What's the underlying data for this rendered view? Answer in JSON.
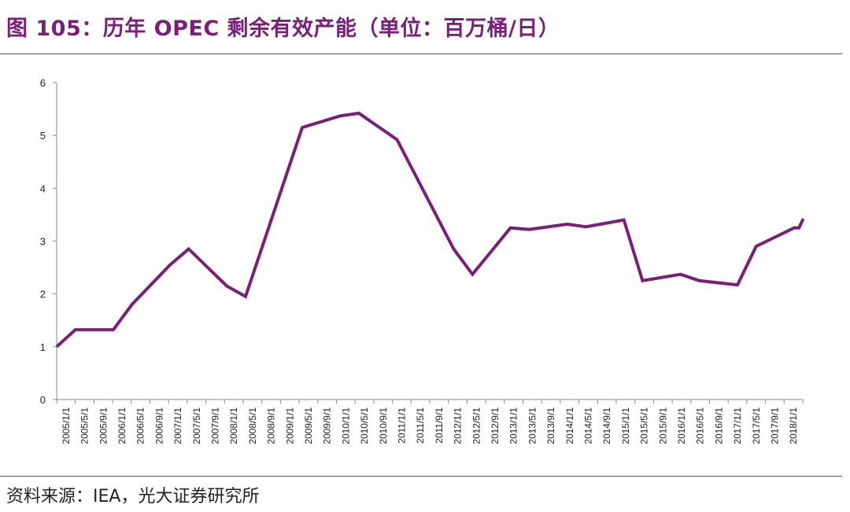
{
  "figure": {
    "title": "图 105：历年 OPEC 剩余有效产能（单位：百万桶/日）",
    "source": "资料来源：IEA，光大证券研究所"
  },
  "chart_data": {
    "type": "line",
    "title": "",
    "xlabel": "",
    "ylabel": "",
    "ylim": [
      0,
      6
    ],
    "yticks": [
      0,
      1,
      2,
      3,
      4,
      5,
      6
    ],
    "grid": false,
    "legend": "none",
    "colors": {
      "line": "#7b1e7a"
    },
    "categories": [
      "2005/1/1",
      "2005/5/1",
      "2005/9/1",
      "2006/1/1",
      "2006/5/1",
      "2006/9/1",
      "2007/1/1",
      "2007/5/1",
      "2007/9/1",
      "2008/1/1",
      "2008/5/1",
      "2008/9/1",
      "2009/1/1",
      "2009/5/1",
      "2009/9/1",
      "2010/1/1",
      "2010/5/1",
      "2010/9/1",
      "2011/1/1",
      "2011/5/1",
      "2011/9/1",
      "2012/1/1",
      "2012/5/1",
      "2012/9/1",
      "2013/1/1",
      "2013/5/1",
      "2013/9/1",
      "2014/1/1",
      "2014/5/1",
      "2014/9/1",
      "2015/1/1",
      "2015/5/1",
      "2015/9/1",
      "2016/1/1",
      "2016/5/1",
      "2016/9/1",
      "2017/1/1",
      "2017/5/1",
      "2017/9/1",
      "2018/1/1"
    ],
    "series": [
      {
        "name": "",
        "points": [
          [
            "2005/1/1",
            1.0
          ],
          [
            "2005/5/1",
            1.32
          ],
          [
            "2006/1/1",
            1.32
          ],
          [
            "2006/5/1",
            1.8
          ],
          [
            "2007/1/1",
            2.55
          ],
          [
            "2007/5/1",
            2.85
          ],
          [
            "2008/1/1",
            2.15
          ],
          [
            "2008/5/1",
            1.95
          ],
          [
            "2009/5/1",
            5.15
          ],
          [
            "2010/1/1",
            5.37
          ],
          [
            "2010/5/1",
            5.42
          ],
          [
            "2011/1/1",
            4.92
          ],
          [
            "2012/1/1",
            2.85
          ],
          [
            "2012/5/1",
            2.37
          ],
          [
            "2013/1/1",
            3.25
          ],
          [
            "2013/5/1",
            3.22
          ],
          [
            "2014/1/1",
            3.32
          ],
          [
            "2014/5/1",
            3.27
          ],
          [
            "2015/1/1",
            3.4
          ],
          [
            "2015/5/1",
            2.25
          ],
          [
            "2016/1/1",
            2.37
          ],
          [
            "2016/5/1",
            2.25
          ],
          [
            "2017/1/1",
            2.17
          ],
          [
            "2017/5/1",
            2.9
          ],
          [
            "2018/1/1",
            3.25
          ],
          [
            "2018/2/1",
            3.25
          ],
          [
            "2018/3/1",
            3.42
          ]
        ]
      }
    ]
  }
}
